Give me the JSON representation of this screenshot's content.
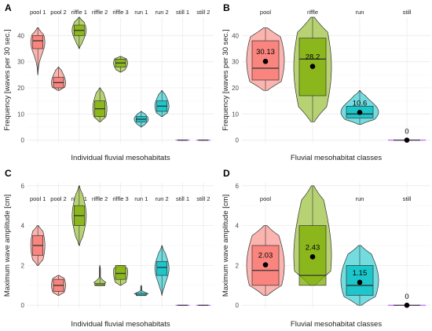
{
  "colors": {
    "pool": "#f8766d",
    "riffle": "#7cae00",
    "run": "#00bfc4",
    "still": "#c77cff",
    "grid": "#ebebeb",
    "text": "#4d4d4d",
    "outline": "#333333"
  },
  "chart_data": [
    {
      "panel": "A",
      "type": "violin-box",
      "categories": [
        "pool 1",
        "pool 2",
        "riffle 1",
        "riffle 2",
        "riffle 3",
        "run 1",
        "run 2",
        "still 1",
        "still 2"
      ],
      "groups": [
        "pool",
        "pool",
        "riffle",
        "riffle",
        "riffle",
        "run",
        "run",
        "still",
        "still"
      ],
      "xlabel": "Individual fluvial mesohabitats",
      "ylabel": "Frequency [waves per 30 sec.]",
      "ylim": [
        -1,
        47
      ],
      "yticks": [
        "0",
        "10",
        "20",
        "30",
        "40"
      ],
      "ytick_values": [
        0,
        10,
        20,
        30,
        40
      ],
      "boxes": [
        {
          "min": 25,
          "q1": 35,
          "median": 38,
          "q3": 40,
          "max": 43
        },
        {
          "min": 19,
          "q1": 20,
          "median": 22,
          "q3": 24,
          "max": 28
        },
        {
          "min": 35,
          "q1": 40,
          "median": 42,
          "q3": 44,
          "max": 47
        },
        {
          "min": 7,
          "q1": 9,
          "median": 12,
          "q3": 15,
          "max": 20
        },
        {
          "min": 26,
          "q1": 28,
          "median": 29.5,
          "q3": 31,
          "max": 32
        },
        {
          "min": 5,
          "q1": 7,
          "median": 8,
          "q3": 9,
          "max": 11
        },
        {
          "min": 9,
          "q1": 11,
          "median": 13,
          "q3": 15,
          "max": 19
        },
        {
          "min": 0,
          "q1": 0,
          "median": 0,
          "q3": 0,
          "max": 0
        },
        {
          "min": 0,
          "q1": 0,
          "median": 0,
          "q3": 0,
          "max": 0
        }
      ]
    },
    {
      "panel": "B",
      "type": "violin-box",
      "categories": [
        "pool",
        "riffle",
        "run",
        "still"
      ],
      "groups": [
        "pool",
        "riffle",
        "run",
        "still"
      ],
      "xlabel": "Fluvial mesohabitat classes",
      "ylabel": "Frequency [waves per 30 sec.]",
      "ylim": [
        -1,
        47
      ],
      "yticks": [
        "0",
        "10",
        "20",
        "30",
        "40"
      ],
      "ytick_values": [
        0,
        10,
        20,
        30,
        40
      ],
      "boxes": [
        {
          "min": 19,
          "q1": 23,
          "median": 27.5,
          "q3": 38,
          "max": 43
        },
        {
          "min": 7,
          "q1": 17,
          "median": 31,
          "q3": 39,
          "max": 47
        },
        {
          "min": 6,
          "q1": 8.5,
          "median": 10,
          "q3": 13,
          "max": 19
        },
        {
          "min": 0,
          "q1": 0,
          "median": 0,
          "q3": 0,
          "max": 0
        }
      ],
      "means": [
        30.13,
        28.2,
        10.6,
        0
      ],
      "mean_labels": [
        "30.13",
        "28.2",
        "10.6",
        "0"
      ]
    },
    {
      "panel": "C",
      "type": "violin-box",
      "categories": [
        "pool 1",
        "pool 2",
        "riffle 1",
        "riffle 2",
        "riffle 3",
        "run 1",
        "run 2",
        "still 1",
        "still 2"
      ],
      "groups": [
        "pool",
        "pool",
        "riffle",
        "riffle",
        "riffle",
        "run",
        "run",
        "still",
        "still"
      ],
      "xlabel": "Individual fluvial mesohabitats",
      "ylabel": "Maximum wave amplitude [cm]",
      "ylim": [
        -0.15,
        6.15
      ],
      "yticks": [
        "0",
        "2",
        "4",
        "6"
      ],
      "ytick_values": [
        0,
        2,
        4,
        6
      ],
      "boxes": [
        {
          "min": 2,
          "q1": 2.5,
          "median": 3,
          "q3": 3.5,
          "max": 4
        },
        {
          "min": 0.5,
          "q1": 0.7,
          "median": 1,
          "q3": 1.3,
          "max": 1.5
        },
        {
          "min": 3,
          "q1": 4,
          "median": 4.5,
          "q3": 5,
          "max": 6
        },
        {
          "min": 1,
          "q1": 1,
          "median": 1,
          "q3": 1.1,
          "max": 2
        },
        {
          "min": 1,
          "q1": 1.3,
          "median": 1.6,
          "q3": 2,
          "max": 2
        },
        {
          "min": 0.5,
          "q1": 0.5,
          "median": 0.5,
          "q3": 0.6,
          "max": 1
        },
        {
          "min": 0.5,
          "q1": 1.5,
          "median": 1.9,
          "q3": 2.2,
          "max": 3
        },
        {
          "min": 0,
          "q1": 0,
          "median": 0,
          "q3": 0,
          "max": 0
        },
        {
          "min": 0,
          "q1": 0,
          "median": 0,
          "q3": 0,
          "max": 0
        }
      ]
    },
    {
      "panel": "D",
      "type": "violin-box",
      "categories": [
        "pool",
        "riffle",
        "run",
        "still"
      ],
      "groups": [
        "pool",
        "riffle",
        "run",
        "still"
      ],
      "xlabel": "Fluvial mesohabitat classes",
      "ylabel": "Maximum wave amplitude [cm]",
      "ylim": [
        -0.15,
        6.15
      ],
      "yticks": [
        "0",
        "2",
        "4",
        "6"
      ],
      "ytick_values": [
        0,
        2,
        4,
        6
      ],
      "boxes": [
        {
          "min": 0.5,
          "q1": 1,
          "median": 1.75,
          "q3": 3,
          "max": 4
        },
        {
          "min": 1,
          "q1": 1,
          "median": 1.5,
          "q3": 4,
          "max": 6
        },
        {
          "min": 0,
          "q1": 0.5,
          "median": 1,
          "q3": 2,
          "max": 3
        },
        {
          "min": 0,
          "q1": 0,
          "median": 0,
          "q3": 0,
          "max": 0
        }
      ],
      "means": [
        2.03,
        2.43,
        1.15,
        0
      ],
      "mean_labels": [
        "2.03",
        "2.43",
        "1.15",
        "0"
      ]
    }
  ]
}
